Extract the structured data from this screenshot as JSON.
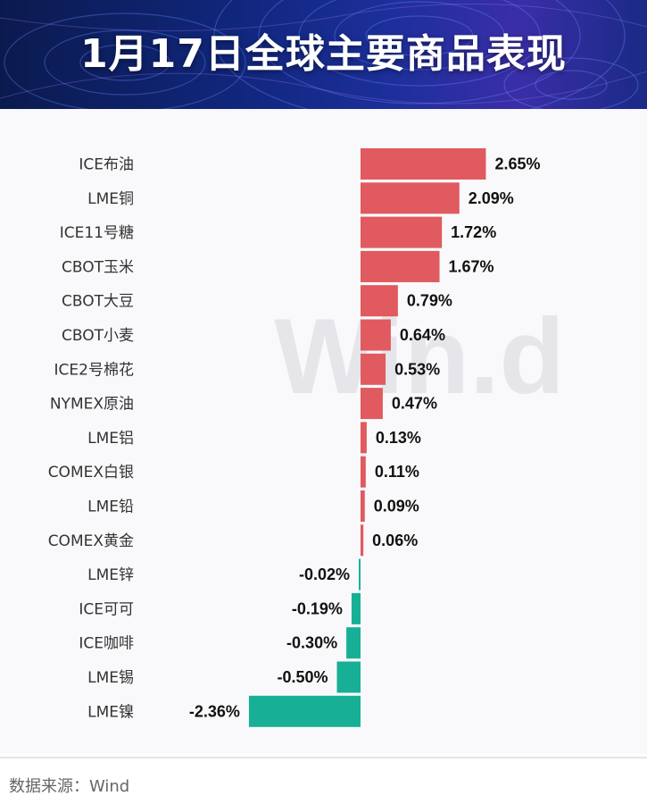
{
  "header": {
    "title": "1月17日全球主要商品表现"
  },
  "footer": {
    "source": "数据来源：Wind"
  },
  "watermark": {
    "text": "Win.d"
  },
  "colors": {
    "positive": "#e05a60",
    "negative": "#17b096",
    "banner": "#12287e"
  },
  "chart_data": {
    "type": "bar",
    "orientation": "horizontal",
    "title": "1月17日全球主要商品表现",
    "categories": [
      "ICE布油",
      "LME铜",
      "ICE11号糖",
      "CBOT玉米",
      "CBOT大豆",
      "CBOT小麦",
      "ICE2号棉花",
      "NYMEX原油",
      "LME铝",
      "COMEX白银",
      "LME铅",
      "COMEX黄金",
      "LME锌",
      "ICE可可",
      "ICE咖啡",
      "LME锡",
      "LME镍"
    ],
    "values": [
      2.65,
      2.09,
      1.72,
      1.67,
      0.79,
      0.64,
      0.53,
      0.47,
      0.13,
      0.11,
      0.09,
      0.06,
      -0.02,
      -0.19,
      -0.3,
      -0.5,
      -2.36
    ],
    "value_labels": [
      "2.65%",
      "2.09%",
      "1.72%",
      "1.67%",
      "0.79%",
      "0.64%",
      "0.53%",
      "0.47%",
      "0.13%",
      "0.11%",
      "0.09%",
      "0.06%",
      "-0.02%",
      "-0.19%",
      "-0.30%",
      "-0.50%",
      "-2.36%"
    ],
    "unit": "%",
    "xlim": [
      -2.36,
      2.65
    ],
    "grid": false,
    "legend": "none"
  }
}
